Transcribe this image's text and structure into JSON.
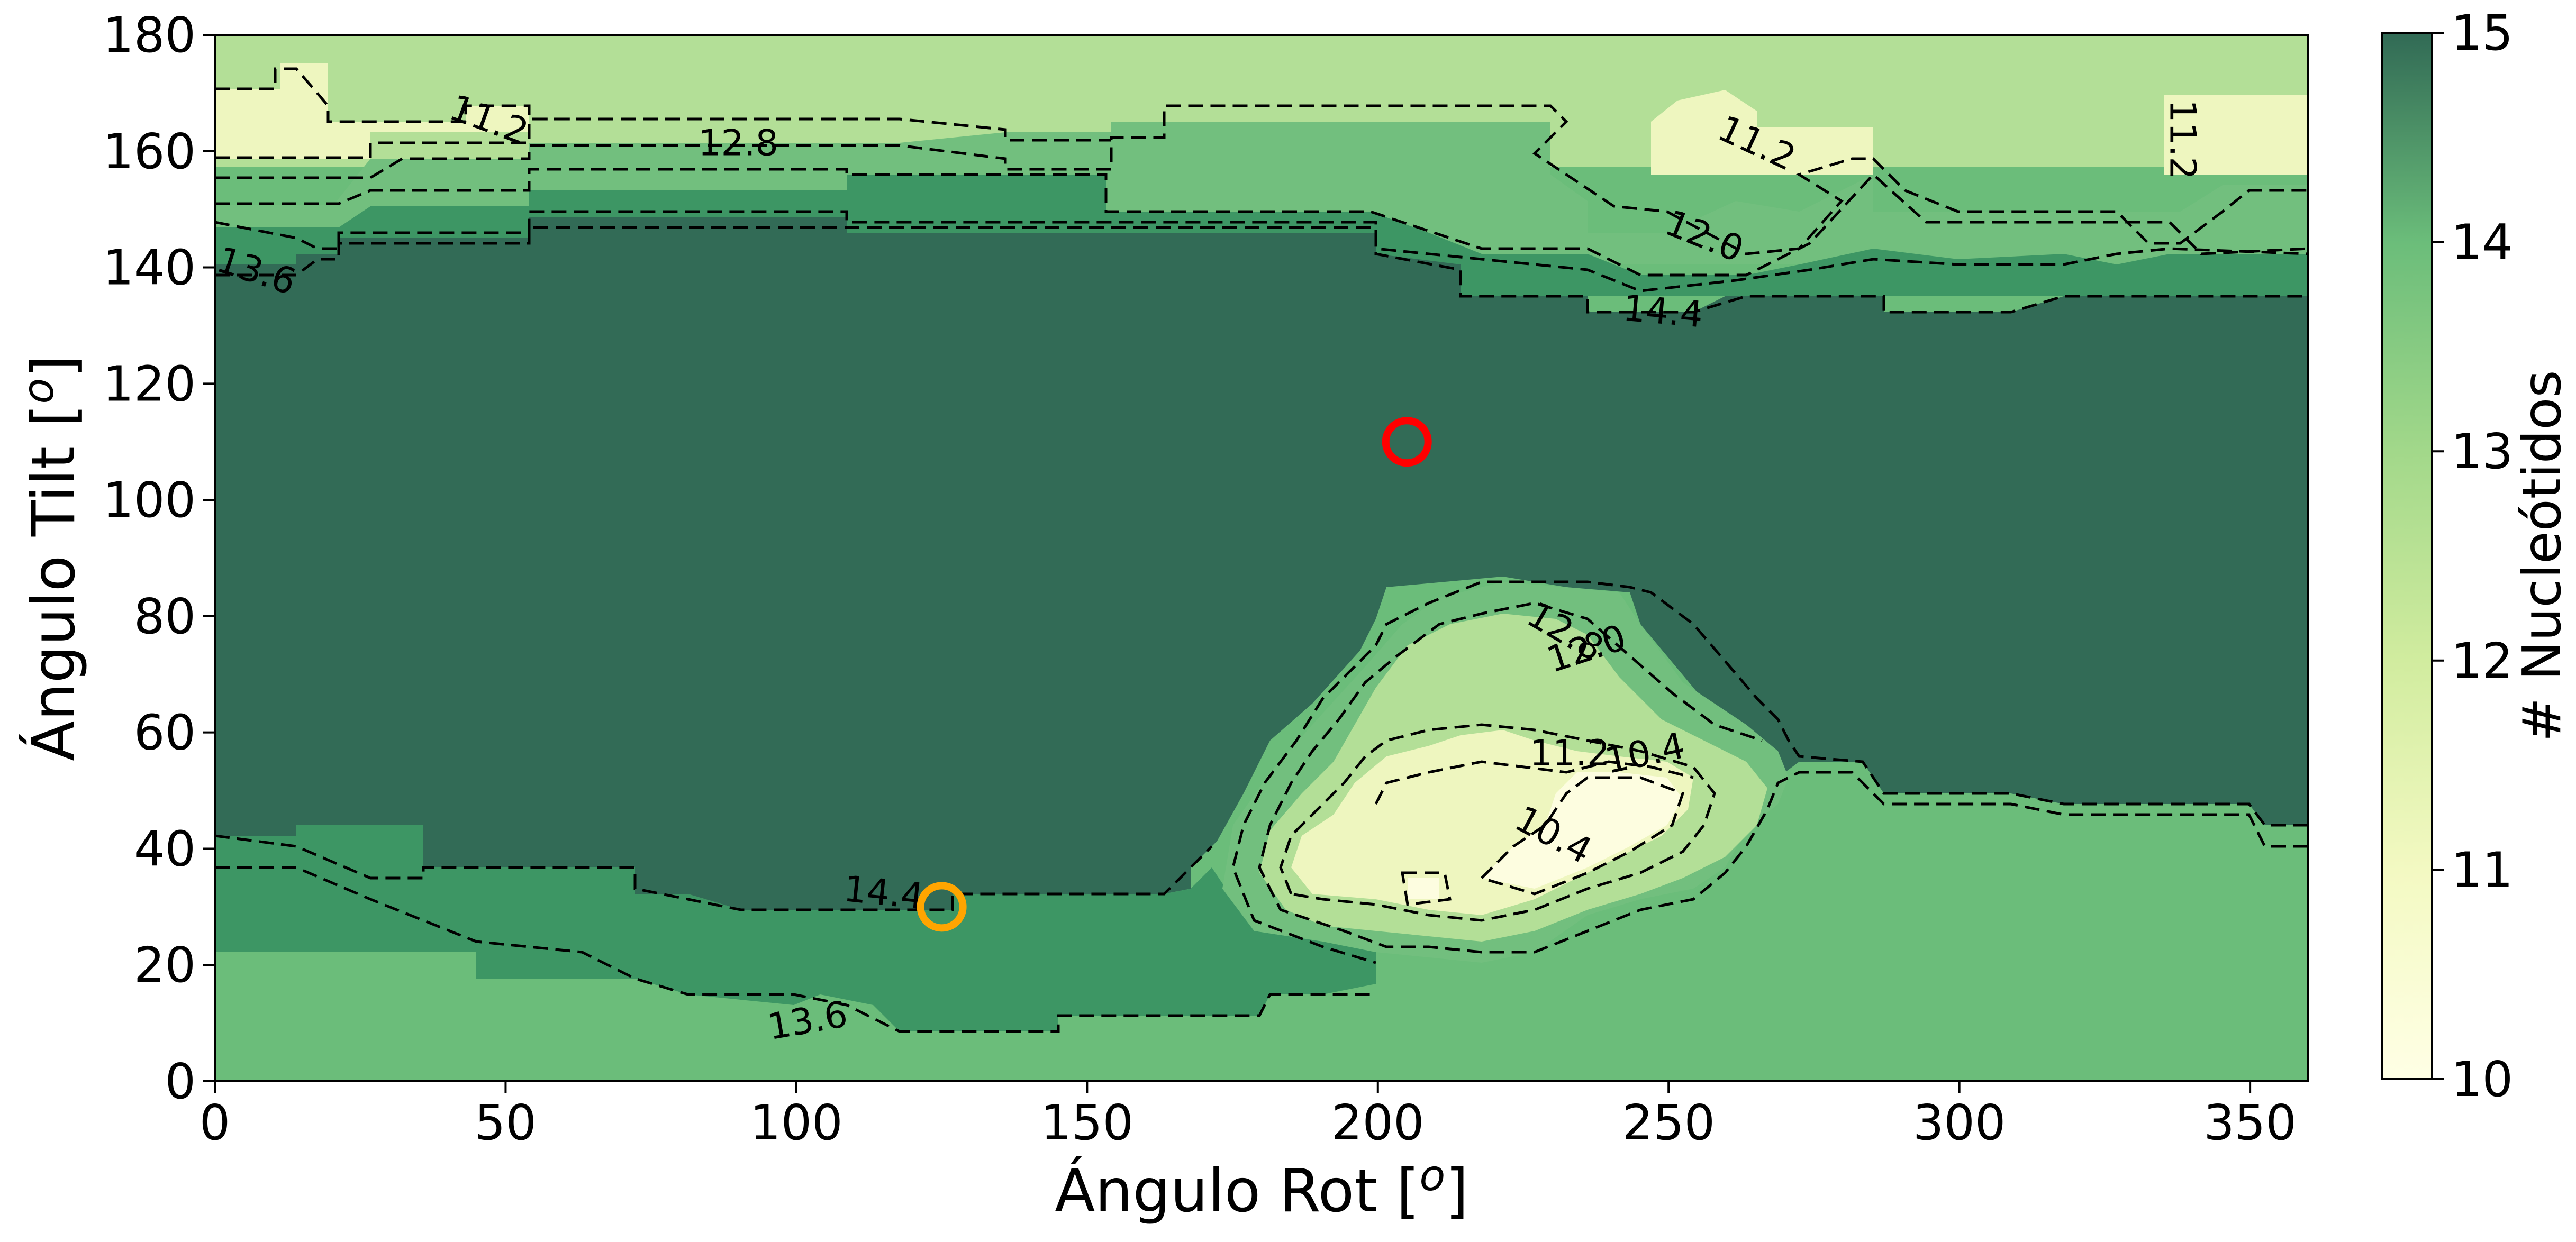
{
  "chart_data": {
    "type": "heatmap",
    "title": "",
    "xlabel": "Ángulo Rot [",
    "ylabel": "Ángulo Tilt [",
    "axis_label_superscript": "o",
    "axis_label_suffix": "]",
    "xlim": [
      0,
      360
    ],
    "ylim": [
      0,
      180
    ],
    "x_ticks": [
      0,
      50,
      100,
      150,
      200,
      250,
      300,
      350
    ],
    "y_ticks": [
      0,
      20,
      40,
      60,
      80,
      100,
      120,
      140,
      160,
      180
    ],
    "x_tick_labels": [
      "0",
      "50",
      "100",
      "150",
      "200",
      "250",
      "300",
      "350"
    ],
    "y_tick_labels": [
      "0",
      "20",
      "40",
      "60",
      "80",
      "100",
      "120",
      "140",
      "160",
      "180"
    ],
    "grid": false,
    "colormap": "Greens",
    "colorbar": {
      "label": "# Nucleótidos",
      "range": [
        10,
        15
      ],
      "ticks": [
        10,
        11,
        12,
        13,
        14,
        15
      ],
      "tick_labels": [
        "10",
        "11",
        "12",
        "13",
        "14",
        "15"
      ],
      "colors": {
        "10": "#ffffe5",
        "11": "#f3f9c2",
        "12": "#d1ec9f",
        "13": "#a2d88a",
        "14": "#6bbd7a",
        "15": "#316a55"
      }
    },
    "value_regions": [
      {
        "value": 12.0,
        "description": "top band",
        "tilt_range": [
          158,
          180
        ],
        "rot_range": [
          0,
          360
        ]
      },
      {
        "value": 11.0,
        "description": "top-left patch",
        "tilt_range": [
          156,
          175
        ],
        "rot_range": [
          0,
          55
        ]
      },
      {
        "value": 11.0,
        "description": "top-right patch",
        "tilt_range": [
          157,
          172
        ],
        "rot_range": [
          247,
          275
        ]
      },
      {
        "value": 11.0,
        "description": "far right patch",
        "tilt_range": [
          156,
          171
        ],
        "rot_range": [
          335,
          360
        ]
      },
      {
        "value": 13.0,
        "description": "upper green band",
        "tilt_range": [
          141,
          160
        ],
        "rot_range": [
          0,
          360
        ]
      },
      {
        "value": 15.0,
        "description": "central dark band",
        "tilt_range": [
          40,
          141
        ],
        "rot_range": [
          0,
          360
        ]
      },
      {
        "value": 14.0,
        "description": "lower medium band",
        "tilt_range": [
          13,
          40
        ],
        "rot_range": [
          0,
          360
        ]
      },
      {
        "value": 13.0,
        "description": "bottom band",
        "tilt_range": [
          0,
          15
        ],
        "rot_range": [
          0,
          360
        ]
      },
      {
        "value": 13.0,
        "description": "island outer ring",
        "tilt_range": [
          22,
          87
        ],
        "rot_range": [
          178,
          275
        ]
      },
      {
        "value": 12.0,
        "description": "island ring",
        "tilt_range": [
          26,
          73
        ],
        "rot_range": [
          186,
          268
        ]
      },
      {
        "value": 11.0,
        "description": "island inner",
        "tilt_range": [
          28,
          57
        ],
        "rot_range": [
          193,
          258
        ]
      },
      {
        "value": 10.0,
        "description": "island core",
        "tilt_range": [
          35,
          55
        ],
        "rot_range": [
          226,
          258
        ]
      }
    ],
    "contour_levels": [
      10.4,
      11.2,
      12.0,
      12.8,
      13.6,
      14.4
    ],
    "contour_labels": [
      {
        "text": "11.2",
        "x": 47,
        "y": 165,
        "rotation": 20
      },
      {
        "text": "12.8",
        "x": 90,
        "y": 161,
        "rotation": 0
      },
      {
        "text": "11.2",
        "x": 265,
        "y": 161,
        "rotation": 25
      },
      {
        "text": "11.2",
        "x": 338,
        "y": 162,
        "rotation": 90
      },
      {
        "text": "12.0",
        "x": 256,
        "y": 145,
        "rotation": 22
      },
      {
        "text": "13.6",
        "x": 7,
        "y": 139,
        "rotation": 18
      },
      {
        "text": "14.4",
        "x": 249,
        "y": 132,
        "rotation": 5
      },
      {
        "text": "12.8",
        "x": 232,
        "y": 77,
        "rotation": 30
      },
      {
        "text": "12.0",
        "x": 236,
        "y": 74,
        "rotation": -18
      },
      {
        "text": "11.2",
        "x": 233,
        "y": 56,
        "rotation": 0
      },
      {
        "text": "10.4",
        "x": 246,
        "y": 56,
        "rotation": -12
      },
      {
        "text": "10.4",
        "x": 230,
        "y": 42,
        "rotation": 28
      },
      {
        "text": "14.4",
        "x": 115,
        "y": 32,
        "rotation": 6
      },
      {
        "text": "13.6",
        "x": 102,
        "y": 10,
        "rotation": -10
      }
    ],
    "markers": [
      {
        "x": 205,
        "y": 110,
        "shape": "circle",
        "color": "#ff0000"
      },
      {
        "x": 125,
        "y": 30,
        "shape": "circle",
        "color": "#ffa500"
      }
    ]
  }
}
